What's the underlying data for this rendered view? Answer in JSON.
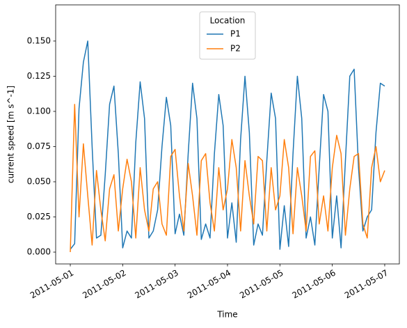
{
  "chart_data": {
    "type": "line",
    "xlabel": "Time",
    "ylabel": "current speed [m s^-1]",
    "legend_title": "Location",
    "legend_position": "upper center",
    "x": [
      0,
      2,
      4,
      6,
      8,
      10,
      12,
      14,
      16,
      18,
      20,
      22,
      24,
      26,
      28,
      30,
      32,
      34,
      36,
      38,
      40,
      42,
      44,
      46,
      48,
      50,
      52,
      54,
      56,
      58,
      60,
      62,
      64,
      66,
      68,
      70,
      72,
      74,
      76,
      78,
      80,
      82,
      84,
      86,
      88,
      90,
      92,
      94,
      96,
      98,
      100,
      102,
      104,
      106,
      108,
      110,
      112,
      114,
      116,
      118,
      120,
      122,
      124,
      126,
      128,
      130,
      132,
      134,
      136,
      138,
      140,
      142,
      144
    ],
    "xlim": [
      -6.7,
      150.7
    ],
    "xticks": [
      {
        "value": 0,
        "label": "2011-05-01"
      },
      {
        "value": 24,
        "label": "2011-05-02"
      },
      {
        "value": 48,
        "label": "2011-05-03"
      },
      {
        "value": 72,
        "label": "2011-05-04"
      },
      {
        "value": 96,
        "label": "2011-05-05"
      },
      {
        "value": 120,
        "label": "2011-05-06"
      },
      {
        "value": 144,
        "label": "2011-05-07"
      }
    ],
    "ylim": [
      -0.0084,
      0.1757
    ],
    "yticks": [
      {
        "value": 0,
        "label": "0.000"
      },
      {
        "value": 0.025,
        "label": "0.025"
      },
      {
        "value": 0.05,
        "label": "0.050"
      },
      {
        "value": 0.075,
        "label": "0.075"
      },
      {
        "value": 0.1,
        "label": "0.100"
      },
      {
        "value": 0.125,
        "label": "0.125"
      },
      {
        "value": 0.15,
        "label": "0.150"
      }
    ],
    "series": [
      {
        "name": "P1",
        "color": "#1f77b4",
        "values": [
          0.002,
          0.006,
          0.102,
          0.135,
          0.15,
          0.075,
          0.01,
          0.012,
          0.055,
          0.105,
          0.118,
          0.07,
          0.003,
          0.015,
          0.01,
          0.078,
          0.121,
          0.095,
          0.01,
          0.015,
          0.03,
          0.075,
          0.11,
          0.09,
          0.013,
          0.027,
          0.012,
          0.07,
          0.12,
          0.095,
          0.009,
          0.02,
          0.01,
          0.07,
          0.112,
          0.09,
          0.01,
          0.035,
          0.007,
          0.08,
          0.125,
          0.085,
          0.005,
          0.02,
          0.012,
          0.065,
          0.113,
          0.095,
          0.002,
          0.033,
          0.004,
          0.07,
          0.125,
          0.095,
          0.01,
          0.025,
          0.005,
          0.06,
          0.112,
          0.1,
          0.01,
          0.04,
          0.003,
          0.065,
          0.125,
          0.13,
          0.06,
          0.015,
          0.025,
          0.03,
          0.085,
          0.12,
          0.118
        ]
      },
      {
        "name": "P2",
        "color": "#ff7f0e",
        "values": [
          0,
          0.105,
          0.025,
          0.077,
          0.04,
          0.005,
          0.058,
          0.03,
          0.008,
          0.045,
          0.055,
          0.015,
          0.045,
          0.066,
          0.05,
          0.01,
          0.06,
          0.03,
          0.015,
          0.045,
          0.05,
          0.02,
          0.012,
          0.068,
          0.073,
          0.04,
          0.015,
          0.063,
          0.04,
          0.012,
          0.065,
          0.07,
          0.035,
          0.015,
          0.06,
          0.03,
          0.045,
          0.08,
          0.06,
          0.015,
          0.065,
          0.04,
          0.02,
          0.068,
          0.065,
          0.015,
          0.06,
          0.03,
          0.04,
          0.08,
          0.06,
          0.013,
          0.06,
          0.04,
          0.015,
          0.068,
          0.072,
          0.02,
          0.04,
          0.015,
          0.06,
          0.083,
          0.07,
          0.012,
          0.045,
          0.068,
          0.07,
          0.02,
          0.01,
          0.06,
          0.075,
          0.05,
          0.058
        ]
      }
    ]
  }
}
